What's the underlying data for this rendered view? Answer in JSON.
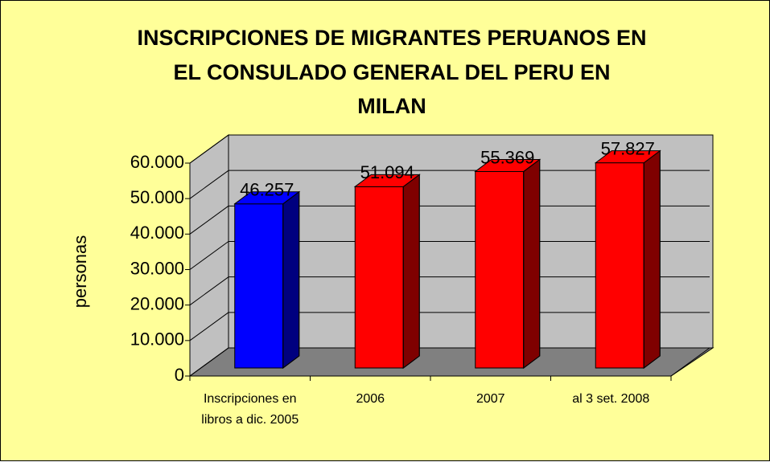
{
  "chart_data": {
    "type": "bar3d",
    "title": [
      "INSCRIPCIONES DE MIGRANTES PERUANOS EN",
      "EL CONSULADO GENERAL DEL PERU EN",
      "MILAN"
    ],
    "y_label": "personas",
    "categories": [
      "Inscripciones en libros a dic. 2005",
      "2006",
      "2007",
      "al 3 set. 2008"
    ],
    "values": [
      46257,
      51094,
      55369,
      57827
    ],
    "value_labels": [
      "46.257",
      "51.094",
      "55.369",
      "57.827"
    ],
    "colors": [
      "#0000ff",
      "#ff0000",
      "#ff0000",
      "#ff0000"
    ],
    "ylim": [
      0,
      60000
    ],
    "yticks": [
      0,
      {
        "value": 10000,
        "label": "10.000"
      },
      {
        "value": 20000,
        "label": "20.000"
      },
      {
        "value": 30000,
        "label": "30.000"
      },
      {
        "value": 40000,
        "label": "40.000"
      },
      {
        "value": 50000,
        "label": "50.000"
      },
      {
        "value": 60000,
        "label": "60.000"
      }
    ],
    "grid": true
  }
}
